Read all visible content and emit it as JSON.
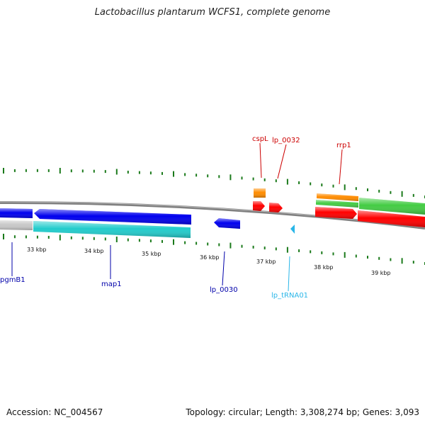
{
  "title": "Lactobacillus plantarum WCFS1, complete genome",
  "footer": {
    "accession": "Accession: NC_004567",
    "summary": "Topology: circular; Length: 3,308,274 bp; Genes: 3,093"
  },
  "colors": {
    "backbone": "#808080",
    "tick": "#1b7a1b",
    "cds_forward": "#ff0000",
    "cds_reverse": "#0000ee",
    "rRNA": "#ff8c00",
    "tRNA": "#29b6e8",
    "misc_light_green": "#44cc44",
    "gene_cyan": "#22cccc",
    "gene_grey": "#c8c8c8"
  },
  "scale_labels": [
    "33 kbp",
    "34 kbp",
    "35 kbp",
    "36 kbp",
    "37 kbp",
    "38 kbp",
    "39 kbp"
  ],
  "gene_labels": [
    {
      "text": "pgmB1",
      "color": "#0000aa"
    },
    {
      "text": "map1",
      "color": "#0000aa"
    },
    {
      "text": "lp_0030",
      "color": "#0000aa"
    },
    {
      "text": "lp_tRNA01",
      "color": "#29b6e8"
    },
    {
      "text": "cspL",
      "color": "#cc0000"
    },
    {
      "text": "lp_0032",
      "color": "#cc0000"
    },
    {
      "text": "rrp1",
      "color": "#cc0000"
    }
  ]
}
